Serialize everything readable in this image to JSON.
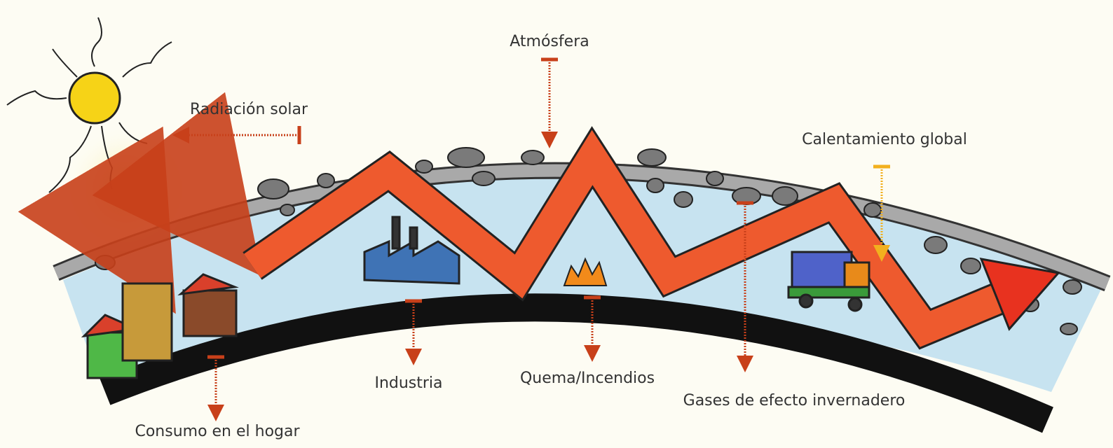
{
  "labels": [
    "Atmósfera",
    "Radiación solar",
    "Calentamiento global",
    "Industria",
    "Quema/Incendios",
    "Gases de efecto invernadero",
    "Consumo en el hogar"
  ]
}
